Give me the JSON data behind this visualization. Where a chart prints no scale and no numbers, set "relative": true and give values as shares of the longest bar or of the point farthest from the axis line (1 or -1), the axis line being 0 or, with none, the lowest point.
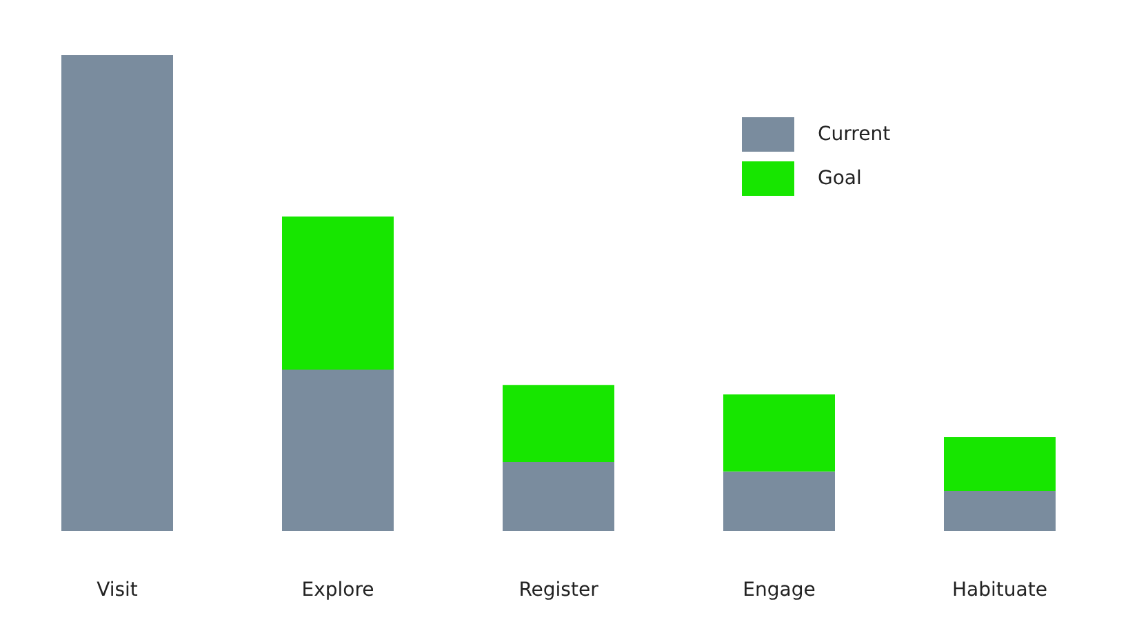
{
  "chart_data": {
    "type": "bar",
    "relative": true,
    "stacked": true,
    "legend": "top right",
    "categories": [
      "Visit",
      "Explore",
      "Register",
      "Engage",
      "Habituate"
    ],
    "series": [
      {
        "name": "Current",
        "color": "#7a8c9e",
        "values": [
          1,
          0.339,
          0.145,
          0.125,
          0.084
        ]
      },
      {
        "name": "Goal",
        "color": "#17e600",
        "values": [
          null,
          0.322,
          0.162,
          0.162,
          0.113
        ]
      }
    ]
  }
}
